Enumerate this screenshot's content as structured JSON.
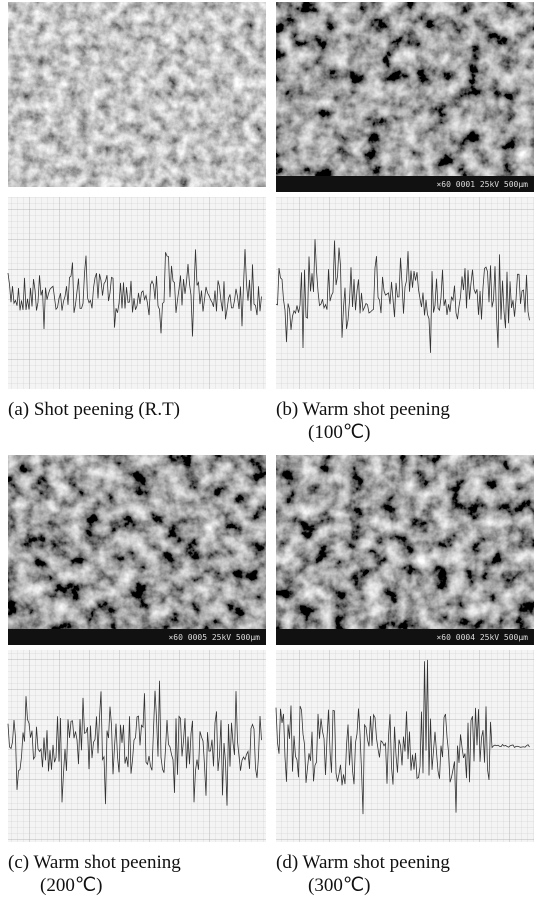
{
  "panels": [
    {
      "caption": [
        "(a)  Shot  peening  (R.T)"
      ]
    },
    {
      "caption": [
        "(b)  Warm  shot  peening",
        "(100℃)"
      ],
      "info_bar": "×60   0001   25kV  500μm"
    },
    {
      "caption": [
        "(c)  Warm  shot  peening",
        "(200℃)"
      ],
      "info_bar": "×60   0005   25kV  500μm"
    },
    {
      "caption": [
        "(d)  Warm  shot  peening",
        "(300℃)"
      ],
      "info_bar": "×60   0004   25kV  500μm"
    }
  ]
}
